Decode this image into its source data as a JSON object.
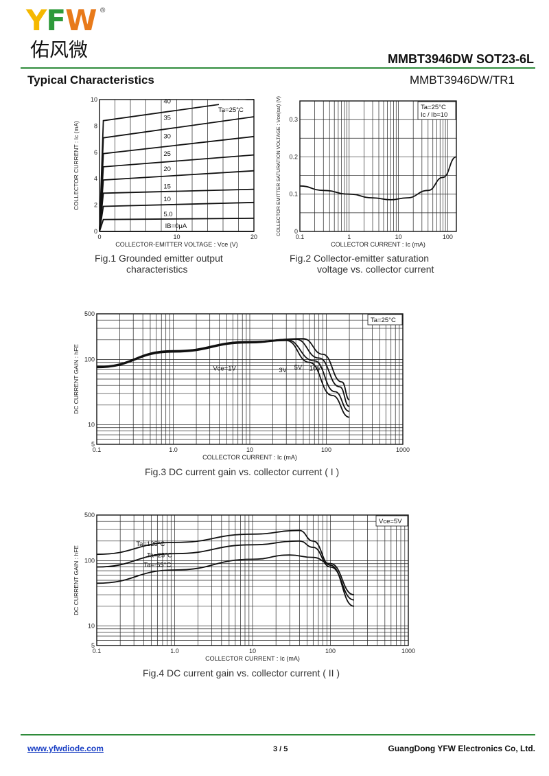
{
  "header": {
    "logo": {
      "letters": "YFW",
      "registered": "®",
      "chinese": "佑风微"
    },
    "part_title": "MMBT3946DW  SOT23-6L"
  },
  "section": {
    "title": "Typical Characteristics",
    "right": "MMBT3946DW/TR1"
  },
  "colors": {
    "brand_yellow": "#f5b800",
    "brand_green": "#2e9a3a",
    "brand_orange": "#e87a1a",
    "rule": "#2e8b3a",
    "link": "#1a3fc4"
  },
  "figures": {
    "fig1": {
      "caption_line1": "Fig.1  Grounded emitter output",
      "caption_line2": "characteristics"
    },
    "fig2": {
      "caption_line1": "Fig.2  Collector-emitter saturation",
      "caption_line2": "voltage vs. collector current"
    },
    "fig3": {
      "caption": "Fig.3  DC current gain vs. collector current ( I )"
    },
    "fig4": {
      "caption": "Fig.4  DC current gain vs. collector current ( II )"
    }
  },
  "chart_data": [
    {
      "id": "fig1",
      "type": "line",
      "xlabel": "COLLECTOR-EMITTER  VOLTAGE : Vce  (V)",
      "ylabel": "COLLECTOR  CURRENT : Ic (mA)",
      "xlim": [
        0,
        20
      ],
      "ylim": [
        0,
        10
      ],
      "x_ticks": [
        0,
        10,
        20
      ],
      "y_ticks": [
        0,
        2,
        4,
        6,
        8,
        10
      ],
      "annotation": "Ta=25°C",
      "series": [
        {
          "name": "IB=0μA",
          "label": "IB=0μA",
          "x": [
            0,
            20
          ],
          "y": [
            0,
            0
          ]
        },
        {
          "name": "5.0",
          "label": "5.0",
          "x": [
            0,
            0.5,
            20
          ],
          "y": [
            0,
            0.9,
            1.0
          ]
        },
        {
          "name": "10",
          "label": "10",
          "x": [
            0,
            0.5,
            20
          ],
          "y": [
            0,
            1.9,
            2.2
          ]
        },
        {
          "name": "15",
          "label": "15",
          "x": [
            0,
            0.5,
            20
          ],
          "y": [
            0,
            2.9,
            3.2
          ]
        },
        {
          "name": "20",
          "label": "20",
          "x": [
            0,
            0.5,
            20
          ],
          "y": [
            0,
            3.9,
            4.6
          ]
        },
        {
          "name": "25",
          "label": "25",
          "x": [
            0,
            0.5,
            20
          ],
          "y": [
            0,
            4.9,
            5.8
          ]
        },
        {
          "name": "30",
          "label": "30",
          "x": [
            0,
            0.5,
            20
          ],
          "y": [
            0,
            5.9,
            7.2
          ]
        },
        {
          "name": "35",
          "label": "35",
          "x": [
            0,
            0.5,
            20
          ],
          "y": [
            0,
            7.1,
            8.7
          ]
        },
        {
          "name": "40",
          "label": "40",
          "x": [
            0,
            0.5,
            20
          ],
          "y": [
            0,
            8.4,
            10.0
          ]
        }
      ]
    },
    {
      "id": "fig2",
      "type": "line",
      "xlabel": "COLLECTOR  CURRENT : Ic (mA)",
      "ylabel": "COLLECTOR EMITTER SATURATION VOLTAGE : Vce(sat) (V)",
      "xscale": "log",
      "xlim": [
        0.1,
        150
      ],
      "ylim": [
        0,
        0.35
      ],
      "x_ticks": [
        0.1,
        1,
        10,
        100
      ],
      "x_tick_labels": [
        "0.1",
        "1",
        "10",
        "100"
      ],
      "y_ticks": [
        0,
        0.1,
        0.2,
        0.3
      ],
      "y_tick_labels": [
        "0",
        "0.1",
        "0.2",
        "0.3"
      ],
      "annotation": [
        "Ta=25°C",
        "Ic / Ib=10"
      ],
      "series": [
        {
          "name": "Vce(sat)",
          "x": [
            0.1,
            0.3,
            1,
            3,
            7,
            15,
            40,
            80,
            150
          ],
          "y": [
            0.122,
            0.11,
            0.1,
            0.09,
            0.085,
            0.09,
            0.11,
            0.145,
            0.2
          ]
        }
      ]
    },
    {
      "id": "fig3",
      "type": "line",
      "xlabel": "COLLECTOR  CURRENT : Ic (mA)",
      "ylabel": "DC CURRENT GAIN : hFE",
      "xscale": "log",
      "yscale": "log",
      "xlim": [
        0.1,
        1000
      ],
      "ylim": [
        5,
        500
      ],
      "x_ticks": [
        0.1,
        1,
        10,
        100,
        1000
      ],
      "x_tick_labels": [
        "0.1",
        "1.0",
        "10",
        "100",
        "1000"
      ],
      "y_ticks": [
        5,
        10,
        100,
        500
      ],
      "y_tick_labels": [
        "5",
        "10",
        "100",
        "500"
      ],
      "annotation": "Ta=25°C",
      "series": [
        {
          "name": "Vce=1V",
          "label": "Vce=1V",
          "x": [
            0.1,
            1,
            10,
            30,
            60,
            120,
            200
          ],
          "y": [
            75,
            130,
            180,
            195,
            90,
            28,
            13
          ]
        },
        {
          "name": "3V",
          "label": "3V",
          "x": [
            0.1,
            1,
            10,
            30,
            70,
            130,
            200
          ],
          "y": [
            76,
            132,
            184,
            202,
            95,
            32,
            16
          ]
        },
        {
          "name": "5V",
          "label": "5V",
          "x": [
            0.1,
            1,
            10,
            40,
            80,
            150,
            200
          ],
          "y": [
            77,
            134,
            186,
            205,
            105,
            38,
            19
          ]
        },
        {
          "name": "10V",
          "label": "10V",
          "x": [
            0.1,
            1,
            10,
            50,
            90,
            160,
            200
          ],
          "y": [
            78,
            136,
            188,
            208,
            120,
            45,
            24
          ]
        }
      ]
    },
    {
      "id": "fig4",
      "type": "line",
      "xlabel": "COLLECTOR  CURRENT : Ic (mA)",
      "ylabel": "DC CURRENT GAIN : hFE",
      "xscale": "log",
      "yscale": "log",
      "xlim": [
        0.1,
        1000
      ],
      "ylim": [
        5,
        500
      ],
      "x_ticks": [
        0.1,
        1,
        10,
        100,
        1000
      ],
      "x_tick_labels": [
        "0.1",
        "1.0",
        "10",
        "100",
        "1000"
      ],
      "y_ticks": [
        5,
        10,
        100,
        500
      ],
      "y_tick_labels": [
        "5",
        "10",
        "100",
        "500"
      ],
      "annotation": "Vce=5V",
      "series": [
        {
          "name": "Ta=125°C",
          "label": "Ta=125°C",
          "x": [
            0.1,
            1,
            10,
            40,
            60,
            100,
            200
          ],
          "y": [
            125,
            190,
            255,
            290,
            200,
            85,
            20
          ]
        },
        {
          "name": "Ta=25°C",
          "label": "Ta=25°C",
          "x": [
            0.1,
            1,
            10,
            40,
            60,
            100,
            200
          ],
          "y": [
            80,
            128,
            175,
            200,
            160,
            80,
            25
          ]
        },
        {
          "name": "Ta=-55°C",
          "label": "Ta=-55°C",
          "x": [
            0.1,
            1,
            10,
            30,
            60,
            100,
            200
          ],
          "y": [
            45,
            72,
            105,
            122,
            112,
            90,
            30
          ]
        }
      ]
    }
  ],
  "footer": {
    "link": "www.yfwdiode.com",
    "page": "3 / 5",
    "company": "GuangDong YFW Electronics Co, Ltd."
  }
}
